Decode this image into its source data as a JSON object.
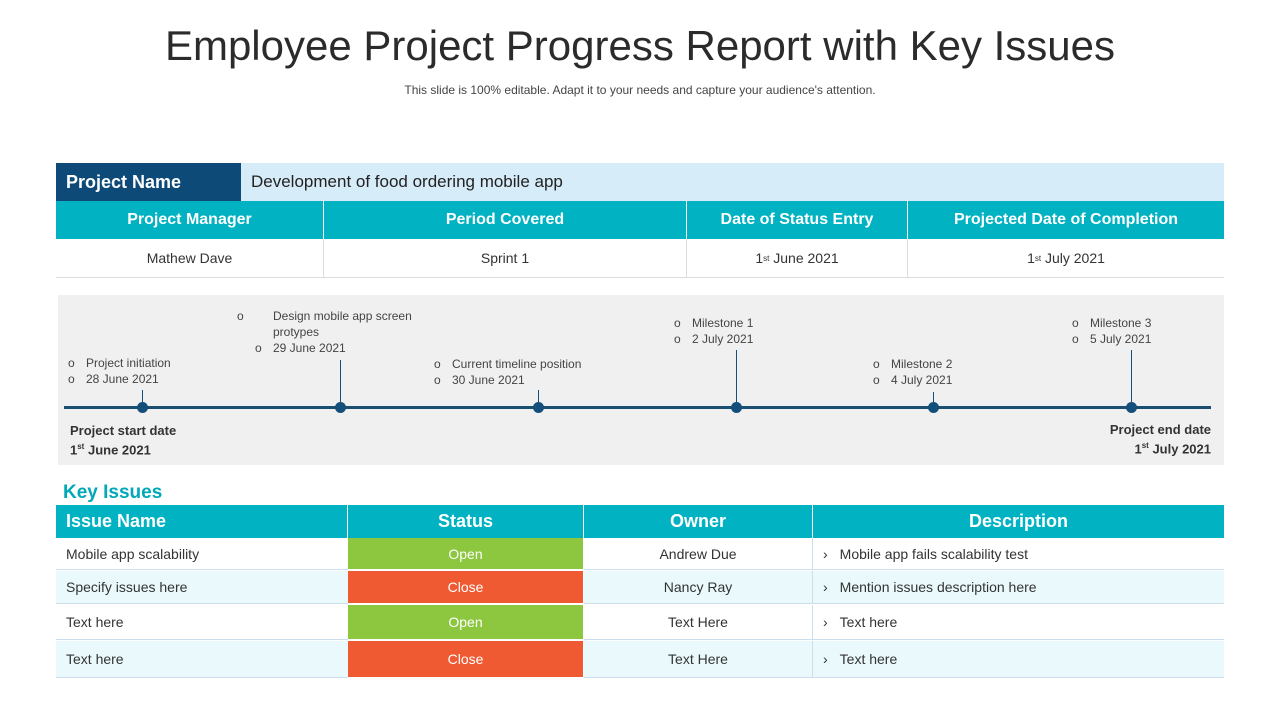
{
  "title": "Employee Project Progress Report with Key Issues",
  "subtitle": "This slide is 100% editable. Adapt it to your needs and capture your audience's attention.",
  "project": {
    "name_label": "Project Name",
    "name_value": "Development of food ordering mobile app",
    "headers": [
      "Project Manager",
      "Period Covered",
      "Date of Status Entry",
      "Projected Date of Completion"
    ],
    "values": [
      "Mathew Dave",
      "Sprint 1",
      {
        "day": "1",
        "sup": "st",
        "rest": " June 2021"
      },
      {
        "day": "1",
        "sup": "st",
        "rest": " July 2021"
      }
    ]
  },
  "timeline": {
    "start": {
      "label": "Project start date",
      "day": "1",
      "sup": "st",
      "rest": " June 2021"
    },
    "end": {
      "label": "Project end date",
      "day": "1",
      "sup": "st",
      "rest": " July 2021"
    },
    "events": [
      {
        "lines": [
          "Project initiation",
          "28 June 2021"
        ]
      },
      {
        "lines": [
          "Design mobile app screen protypes",
          "29 June 2021"
        ]
      },
      {
        "lines": [
          "Current timeline position",
          "30 June 2021"
        ]
      },
      {
        "lines": [
          "Milestone 1",
          "2 July 2021"
        ]
      },
      {
        "lines": [
          "Milestone 2",
          "4 July 2021"
        ]
      },
      {
        "lines": [
          "Milestone 3",
          "5 July 2021"
        ]
      }
    ]
  },
  "issues": {
    "title": "Key Issues",
    "headers": [
      "Issue Name",
      "Status",
      "Owner",
      "Description"
    ],
    "rows": [
      {
        "name": "Mobile app scalability",
        "status": "Open",
        "owner": "Andrew Due",
        "desc": "Mobile app fails scalability test"
      },
      {
        "name": "Specify issues here",
        "status": "Close",
        "owner": "Nancy Ray",
        "desc": "Mention issues description here"
      },
      {
        "name": "Text here",
        "status": "Open",
        "owner": "Text Here",
        "desc": "Text here"
      },
      {
        "name": "Text here",
        "status": "Close",
        "owner": "Text Here",
        "desc": "Text here"
      }
    ]
  },
  "colors": {
    "open": "#8dc63f",
    "close": "#ef5a33",
    "teal": "#00b2c2",
    "navy": "#0d4a78"
  }
}
